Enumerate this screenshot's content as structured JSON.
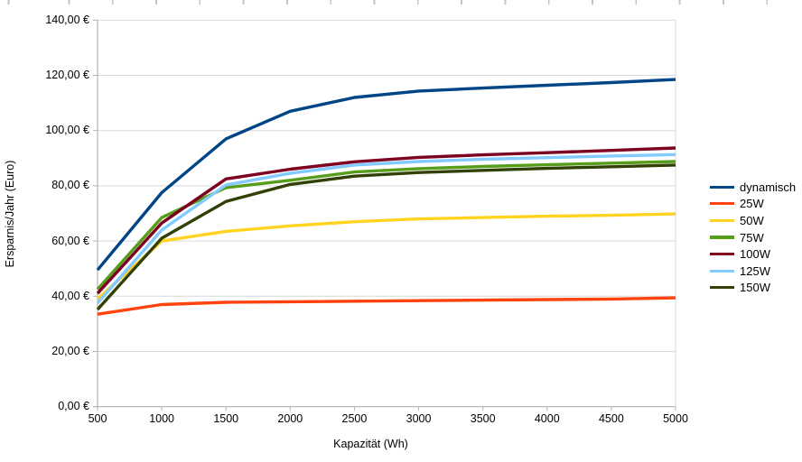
{
  "chart_data": {
    "type": "line",
    "title": "",
    "xlabel": "Kapazität (Wh)",
    "ylabel": "Ersparnis/Jahr (Euro)",
    "xlim": [
      500,
      5000
    ],
    "ylim": [
      0,
      140
    ],
    "grid": "horizontal",
    "legend_position": "right",
    "x": [
      500,
      1000,
      1500,
      2000,
      2500,
      3000,
      3500,
      4000,
      4500,
      5000
    ],
    "x_tick_labels": [
      "500",
      "1000",
      "1500",
      "2000",
      "2500",
      "3000",
      "3500",
      "4000",
      "4500",
      "5000"
    ],
    "y_ticks": [
      0,
      20,
      40,
      60,
      80,
      100,
      120,
      140
    ],
    "y_tick_labels": [
      "0,00 €",
      "20,00 €",
      "40,00 €",
      "60,00 €",
      "80,00 €",
      "100,00 €",
      "120,00 €",
      "140,00 €"
    ],
    "axis_colors": {
      "grid": "#d9d9d9",
      "axis": "#b3b3b3",
      "plot_border": "#d9d9d9"
    },
    "series": [
      {
        "name": "dynamisch",
        "color": "#004586",
        "values": [
          49.5,
          77.5,
          97.0,
          107.0,
          112.0,
          114.3,
          115.4,
          116.4,
          117.4,
          118.5
        ]
      },
      {
        "name": "25W",
        "color": "#ff420e",
        "values": [
          33.5,
          37.0,
          37.8,
          38.0,
          38.2,
          38.4,
          38.6,
          38.8,
          39.0,
          39.4
        ]
      },
      {
        "name": "50W",
        "color": "#ffd320",
        "values": [
          39.0,
          60.0,
          63.5,
          65.5,
          67.0,
          68.0,
          68.5,
          69.0,
          69.3,
          69.8
        ]
      },
      {
        "name": "75W",
        "color": "#579d1c",
        "values": [
          42.5,
          68.5,
          79.3,
          82.0,
          85.0,
          86.2,
          87.0,
          87.6,
          88.2,
          88.8
        ]
      },
      {
        "name": "100W",
        "color": "#7e0021",
        "values": [
          41.0,
          66.5,
          82.5,
          86.0,
          88.7,
          90.3,
          91.2,
          92.0,
          92.8,
          93.7
        ]
      },
      {
        "name": "125W",
        "color": "#83caff",
        "values": [
          37.5,
          64.0,
          80.3,
          84.5,
          87.5,
          88.8,
          89.6,
          90.2,
          90.8,
          91.3
        ]
      },
      {
        "name": "150W",
        "color": "#314004",
        "values": [
          35.2,
          61.0,
          74.3,
          80.5,
          83.5,
          84.8,
          85.6,
          86.3,
          86.9,
          87.5
        ]
      }
    ]
  }
}
